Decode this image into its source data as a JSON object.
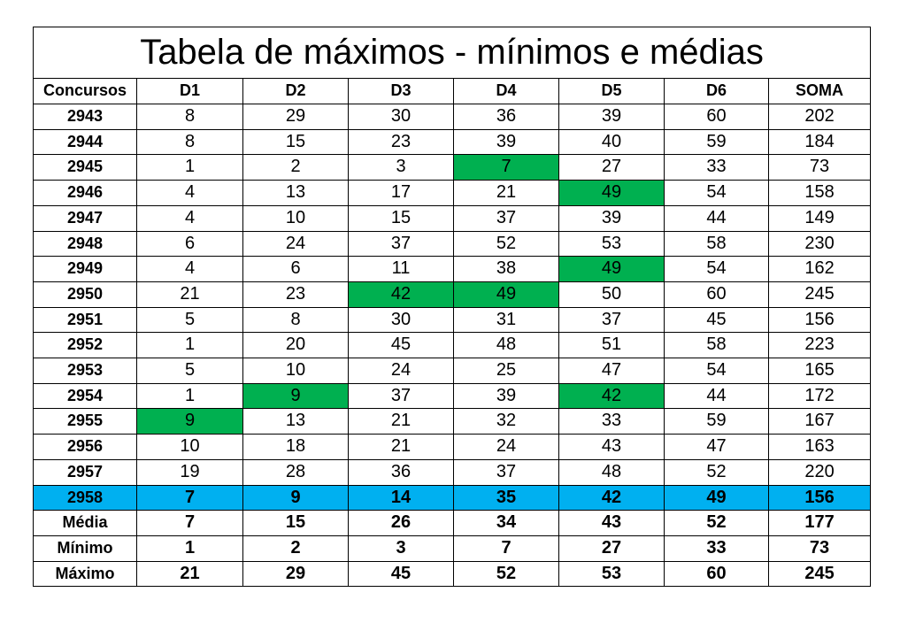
{
  "table": {
    "title": "Tabela de máximos - mínimos e médias",
    "header": [
      "Concursos",
      "D1",
      "D2",
      "D3",
      "D4",
      "D5",
      "D6",
      "SOMA"
    ],
    "rows": [
      [
        2943,
        8,
        29,
        30,
        36,
        39,
        60,
        202
      ],
      [
        2944,
        8,
        15,
        23,
        39,
        40,
        59,
        184
      ],
      [
        2945,
        1,
        2,
        3,
        7,
        27,
        33,
        73
      ],
      [
        2946,
        4,
        13,
        17,
        21,
        49,
        54,
        158
      ],
      [
        2947,
        4,
        10,
        15,
        37,
        39,
        44,
        149
      ],
      [
        2948,
        6,
        24,
        37,
        52,
        53,
        58,
        230
      ],
      [
        2949,
        4,
        6,
        11,
        38,
        49,
        54,
        162
      ],
      [
        2950,
        21,
        23,
        42,
        49,
        50,
        60,
        245
      ],
      [
        2951,
        5,
        8,
        30,
        31,
        37,
        45,
        156
      ],
      [
        2952,
        1,
        20,
        45,
        48,
        51,
        58,
        223
      ],
      [
        2953,
        5,
        10,
        24,
        25,
        47,
        54,
        165
      ],
      [
        2954,
        1,
        9,
        37,
        39,
        42,
        44,
        172
      ],
      [
        2955,
        9,
        13,
        21,
        32,
        33,
        59,
        167
      ],
      [
        2956,
        10,
        18,
        21,
        24,
        43,
        47,
        163
      ],
      [
        2957,
        19,
        28,
        36,
        37,
        48,
        52,
        220
      ],
      [
        2958,
        7,
        9,
        14,
        35,
        42,
        49,
        156
      ],
      [
        "Média",
        7,
        15,
        26,
        34,
        43,
        52,
        177
      ],
      [
        "Mínimo",
        1,
        2,
        3,
        7,
        27,
        33,
        73
      ],
      [
        "Máximo",
        21,
        29,
        45,
        52,
        53,
        60,
        245
      ]
    ]
  }
}
